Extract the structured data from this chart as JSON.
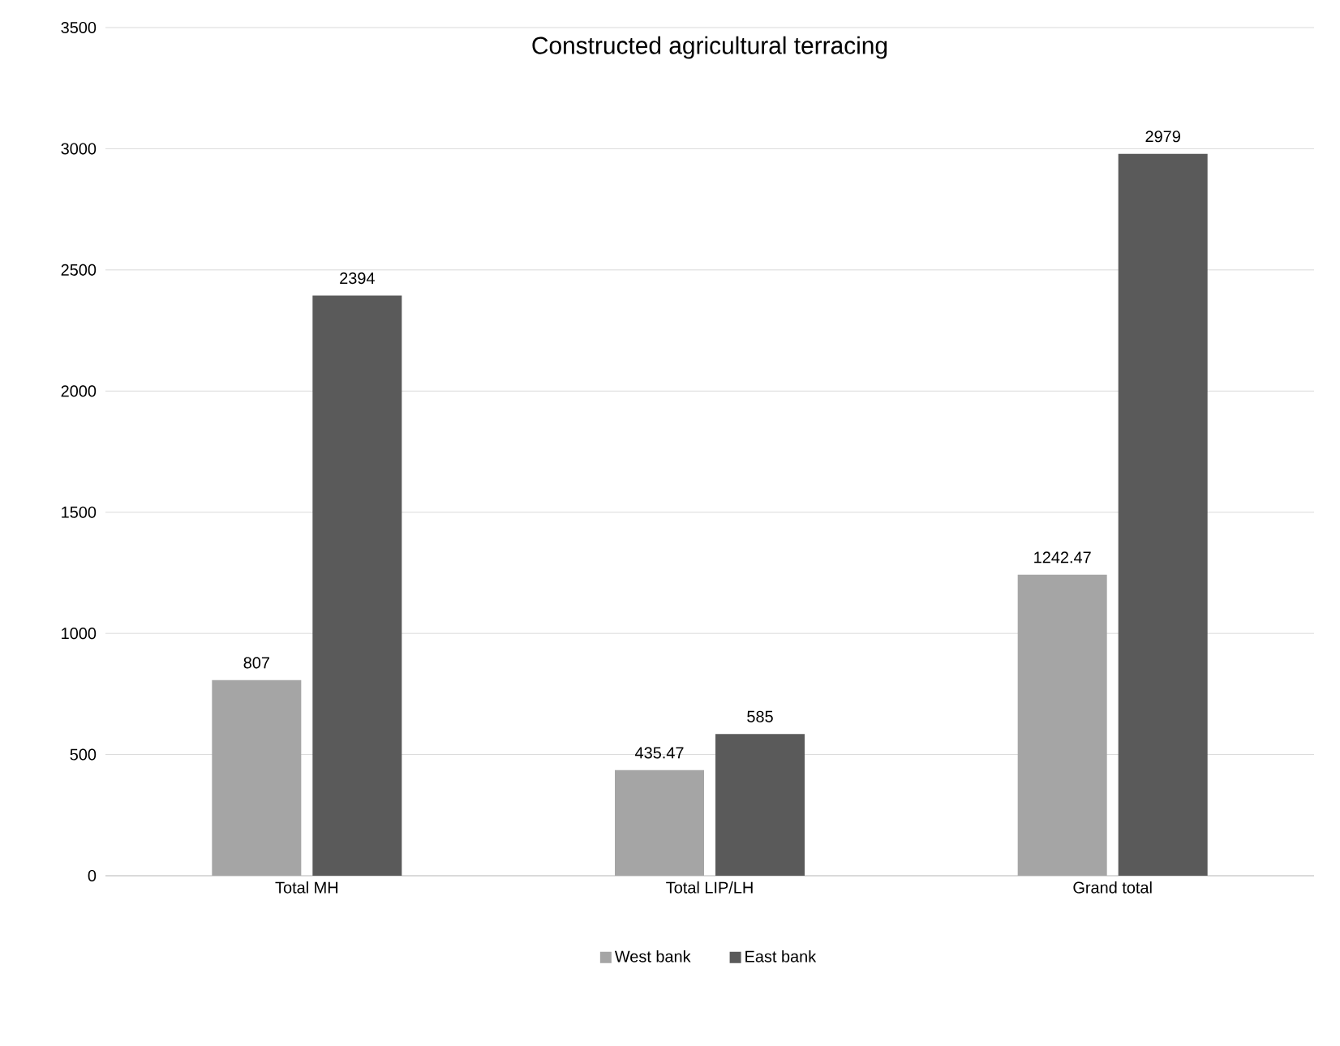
{
  "chart_data": {
    "type": "bar",
    "title": "Constructed agricultural terracing",
    "categories": [
      "Total MH",
      "Total LIP/LH",
      "Grand total"
    ],
    "series": [
      {
        "name": "West bank",
        "color": "#a5a5a5",
        "values": [
          807,
          435.47,
          1242.47
        ]
      },
      {
        "name": "East bank",
        "color": "#5a5a5a",
        "values": [
          2394,
          585,
          2979
        ]
      }
    ],
    "ylim": [
      0,
      3500
    ],
    "yticks": [
      0,
      500,
      1000,
      1500,
      2000,
      2500,
      3000,
      3500
    ],
    "grid": "y",
    "legend": "bottom",
    "data_labels": true
  }
}
